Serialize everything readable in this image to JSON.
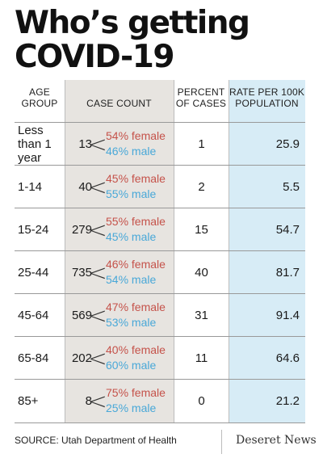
{
  "title": "Who’s getting COVID-19",
  "headers": {
    "age": [
      "AGE",
      "GROUP"
    ],
    "count": [
      "CASE COUNT"
    ],
    "percent": [
      "PERCENT",
      "OF CASES"
    ],
    "rate": [
      "RATE PER 100K",
      "POPULATION"
    ]
  },
  "rows": [
    {
      "age": "Less than 1 year",
      "count": "13",
      "female": "54% female",
      "male": "46% male",
      "percent": "1",
      "rate": "25.9"
    },
    {
      "age": "1-14",
      "count": "40",
      "female": "45% female",
      "male": "55% male",
      "percent": "2",
      "rate": "5.5"
    },
    {
      "age": "15-24",
      "count": "279",
      "female": "55% female",
      "male": "45% male",
      "percent": "15",
      "rate": "54.7"
    },
    {
      "age": "25-44",
      "count": "735",
      "female": "46% female",
      "male": "54% male",
      "percent": "40",
      "rate": "81.7"
    },
    {
      "age": "45-64",
      "count": "569",
      "female": "47% female",
      "male": "53% male",
      "percent": "31",
      "rate": "91.4"
    },
    {
      "age": "65-84",
      "count": "202",
      "female": "40% female",
      "male": "60% male",
      "percent": "11",
      "rate": "64.6"
    },
    {
      "age": "85+",
      "count": "8",
      "female": "75% female",
      "male": "25% male",
      "percent": "0",
      "rate": "21.2"
    }
  ],
  "bracket_symbol": "<",
  "source": "SOURCE: Utah Department of Health",
  "brand": "Deseret News",
  "colors": {
    "female": "#c5524a",
    "male": "#49a8d8",
    "count_column_bg": "#e7e4e0",
    "rate_column_bg": "#d7ecf6"
  }
}
